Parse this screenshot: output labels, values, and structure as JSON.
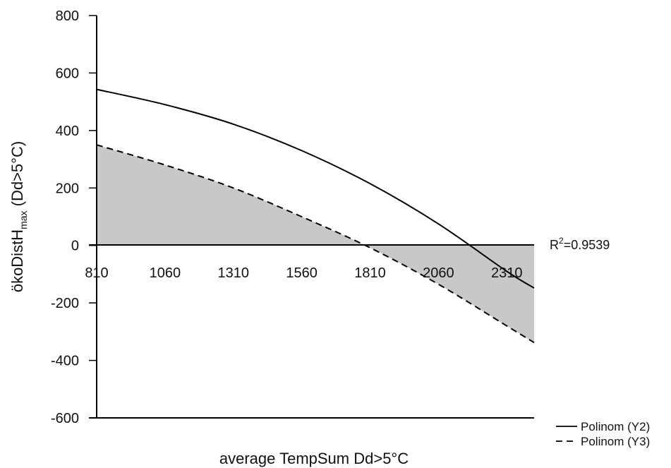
{
  "chart_data": {
    "type": "area",
    "xlabel": "average TempSum Dd>5°C",
    "ylabel": "ökoDistH",
    "ylabel_sub": "max",
    "ylabel_suffix": " (Dd>5°C)",
    "x_ticks": [
      "810",
      "1060",
      "1310",
      "1560",
      "1810",
      "2060",
      "2310"
    ],
    "y_ticks": [
      "800",
      "600",
      "400",
      "200",
      "0",
      "-200",
      "-400",
      "-600"
    ],
    "xlim": [
      810,
      2410
    ],
    "ylim": [
      -600,
      800
    ],
    "grid": false,
    "legend_position": "bottom-right",
    "annotation": {
      "base": "R",
      "sup": "2",
      "rest": "=0.9539"
    },
    "series": [
      {
        "name": "Polinom (Y2)",
        "style": "solid",
        "x": [
          810,
          1060,
          1310,
          1560,
          1810,
          2060,
          2310,
          2410
        ],
        "y": [
          543,
          490,
          422,
          330,
          215,
          75,
          -90,
          -148
        ]
      },
      {
        "name": "Polinom (Y3)",
        "style": "dashed",
        "fill_to_zero": true,
        "x": [
          810,
          1060,
          1310,
          1560,
          1810,
          2060,
          2310,
          2410
        ],
        "y": [
          350,
          280,
          200,
          100,
          -8,
          -135,
          -280,
          -338
        ]
      }
    ],
    "colors": {
      "line": "#000000",
      "fill": "#c8c8c8"
    }
  }
}
